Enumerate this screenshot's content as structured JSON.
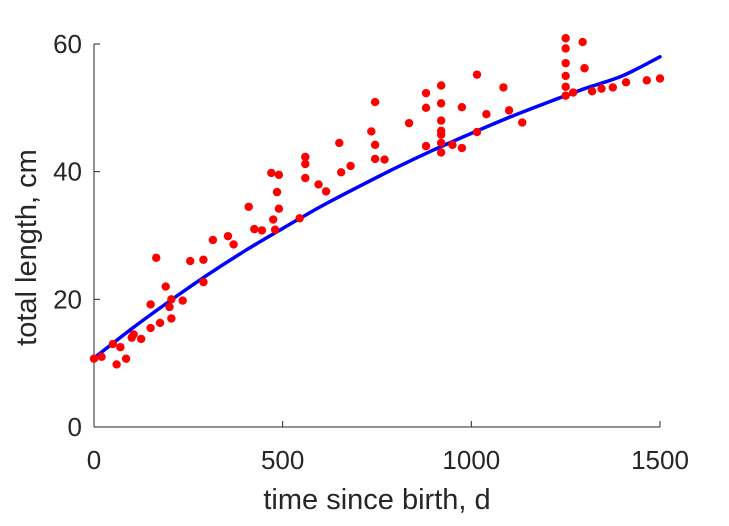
{
  "chart_data": {
    "type": "scatter",
    "title": "",
    "xlabel": "time since birth, d",
    "ylabel": "total length, cm",
    "xlim": [
      0,
      1500
    ],
    "ylim": [
      0,
      60
    ],
    "xticks": [
      0,
      500,
      1000,
      1500
    ],
    "yticks": [
      0,
      20,
      40,
      60
    ],
    "grid": false,
    "legend": "none",
    "series": [
      {
        "type": "scatter",
        "color": "#ff0000",
        "points": [
          [
            0,
            10.7
          ],
          [
            20,
            11.0
          ],
          [
            50,
            13.0
          ],
          [
            60,
            9.8
          ],
          [
            70,
            12.5
          ],
          [
            85,
            10.7
          ],
          [
            100,
            14.0
          ],
          [
            105,
            14.5
          ],
          [
            125,
            13.8
          ],
          [
            150,
            19.2
          ],
          [
            150,
            15.5
          ],
          [
            165,
            26.5
          ],
          [
            175,
            16.3
          ],
          [
            190,
            22.0
          ],
          [
            200,
            18.8
          ],
          [
            205,
            20.0
          ],
          [
            205,
            17.0
          ],
          [
            235,
            19.8
          ],
          [
            255,
            26.0
          ],
          [
            290,
            26.2
          ],
          [
            290,
            22.7
          ],
          [
            315,
            29.3
          ],
          [
            355,
            29.9
          ],
          [
            370,
            28.6
          ],
          [
            410,
            34.5
          ],
          [
            425,
            31.0
          ],
          [
            445,
            30.8
          ],
          [
            470,
            39.8
          ],
          [
            475,
            32.5
          ],
          [
            480,
            30.9
          ],
          [
            485,
            36.8
          ],
          [
            490,
            39.5
          ],
          [
            490,
            34.2
          ],
          [
            545,
            32.7
          ],
          [
            560,
            42.3
          ],
          [
            560,
            41.2
          ],
          [
            560,
            39.0
          ],
          [
            595,
            38.0
          ],
          [
            615,
            36.9
          ],
          [
            650,
            44.5
          ],
          [
            655,
            39.9
          ],
          [
            680,
            40.9
          ],
          [
            735,
            46.3
          ],
          [
            745,
            50.9
          ],
          [
            745,
            44.2
          ],
          [
            745,
            42.0
          ],
          [
            770,
            41.9
          ],
          [
            835,
            47.6
          ],
          [
            880,
            52.3
          ],
          [
            880,
            50.0
          ],
          [
            880,
            44.0
          ],
          [
            920,
            53.5
          ],
          [
            920,
            50.7
          ],
          [
            920,
            48.0
          ],
          [
            920,
            46.4
          ],
          [
            920,
            45.8
          ],
          [
            920,
            44.5
          ],
          [
            920,
            43.0
          ],
          [
            950,
            44.2
          ],
          [
            975,
            50.1
          ],
          [
            975,
            43.7
          ],
          [
            1015,
            55.2
          ],
          [
            1015,
            46.2
          ],
          [
            1040,
            49.0
          ],
          [
            1085,
            53.2
          ],
          [
            1100,
            49.6
          ],
          [
            1135,
            47.7
          ],
          [
            1250,
            60.9
          ],
          [
            1250,
            59.3
          ],
          [
            1250,
            57.0
          ],
          [
            1250,
            55.0
          ],
          [
            1250,
            53.3
          ],
          [
            1250,
            51.9
          ],
          [
            1270,
            52.4
          ],
          [
            1295,
            60.3
          ],
          [
            1300,
            56.2
          ],
          [
            1320,
            52.6
          ],
          [
            1345,
            53.0
          ],
          [
            1375,
            53.2
          ],
          [
            1410,
            54.0
          ],
          [
            1465,
            54.3
          ],
          [
            1500,
            54.6
          ]
        ]
      },
      {
        "type": "line",
        "color": "#0000ff",
        "x": [
          0,
          100,
          200,
          300,
          400,
          500,
          600,
          700,
          800,
          900,
          1000,
          1100,
          1200,
          1300,
          1400,
          1500
        ],
        "y": [
          10.8,
          15.4,
          19.7,
          23.8,
          27.6,
          31.1,
          34.5,
          37.6,
          40.6,
          43.4,
          46.0,
          48.5,
          50.8,
          53.0,
          55.0,
          58.0
        ]
      }
    ]
  }
}
